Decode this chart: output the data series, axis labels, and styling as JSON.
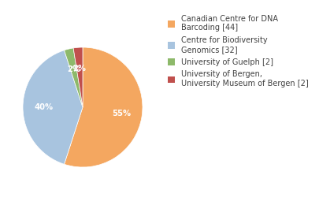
{
  "labels": [
    "Canadian Centre for DNA\nBarcoding [44]",
    "Centre for Biodiversity\nGenomics [32]",
    "University of Guelph [2]",
    "University of Bergen,\nUniversity Museum of Bergen [2]"
  ],
  "values": [
    44,
    32,
    2,
    2
  ],
  "colors": [
    "#F4A760",
    "#A8C4DF",
    "#8DB96A",
    "#C0504D"
  ],
  "startangle": 90,
  "background_color": "#ffffff",
  "text_color": "#404040",
  "fontsize": 7.2,
  "legend_fontsize": 7.0
}
